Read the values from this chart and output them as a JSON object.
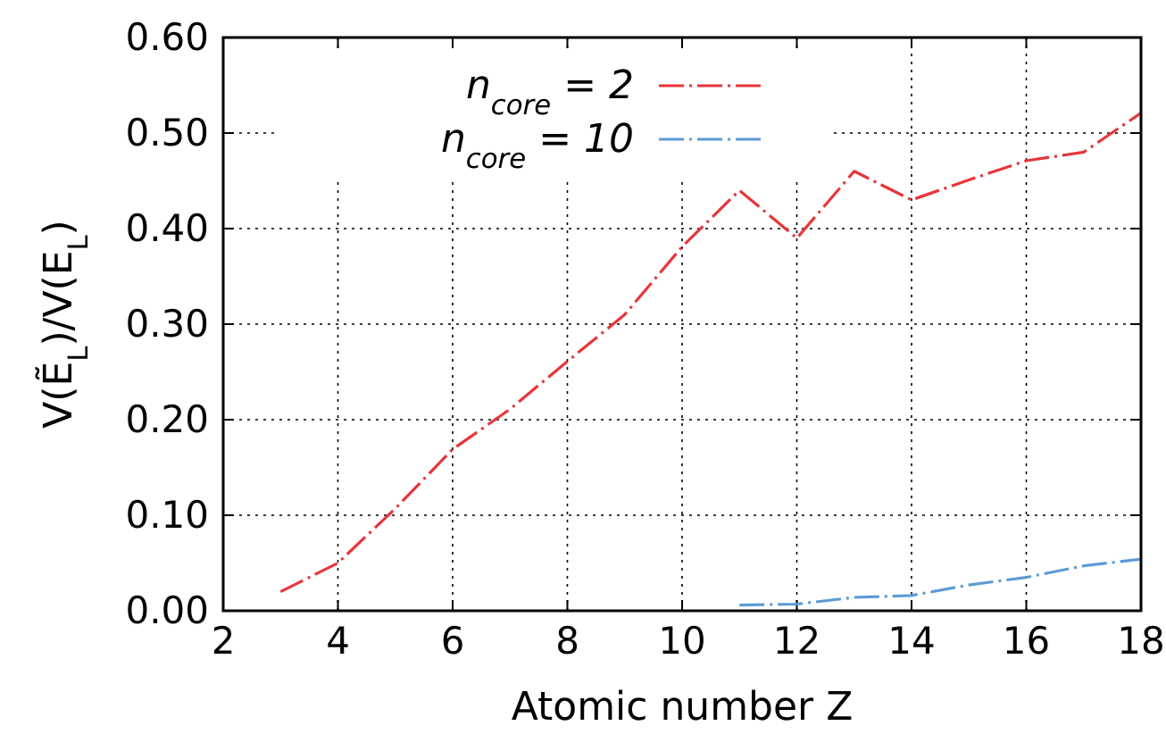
{
  "chart_data": {
    "type": "line",
    "xlabel": "Atomic number Z",
    "ylabel": "V(Ẽ$_{L}$)/V(E$_{L}$)",
    "xlim": [
      2,
      18
    ],
    "xticks": [
      2,
      4,
      6,
      8,
      10,
      12,
      14,
      16,
      18
    ],
    "ylim": [
      0,
      0.6
    ],
    "yticks": [
      {
        "value": 0,
        "label": "0.00"
      },
      {
        "value": 0.1,
        "label": "0.10"
      },
      {
        "value": 0.2,
        "label": "0.20"
      },
      {
        "value": 0.3,
        "label": "0.30"
      },
      {
        "value": 0.4,
        "label": "0.40"
      },
      {
        "value": 0.5,
        "label": "0.50"
      },
      {
        "value": 0.6,
        "label": "0.60"
      }
    ],
    "grid": true,
    "legend": "top left",
    "line_style": "dashed",
    "series": [
      {
        "name": "n$_{core}$ = 2",
        "color": "#e8353a",
        "x": [
          3,
          4,
          5,
          6,
          7,
          8,
          9,
          10,
          11,
          12,
          13,
          14,
          15,
          16,
          17,
          18
        ],
        "values": [
          0.02,
          0.05,
          0.107,
          0.169,
          0.211,
          0.261,
          0.31,
          0.381,
          0.44,
          0.39,
          0.46,
          0.43,
          0.451,
          0.471,
          0.48,
          0.521
        ]
      },
      {
        "name": "n$_{core}$ = 10",
        "color": "#5b9bd5",
        "x": [
          11,
          12,
          13,
          14,
          15,
          16,
          17,
          18
        ],
        "values": [
          0.006,
          0.007,
          0.014,
          0.016,
          0.027,
          0.035,
          0.047,
          0.054
        ]
      }
    ]
  }
}
